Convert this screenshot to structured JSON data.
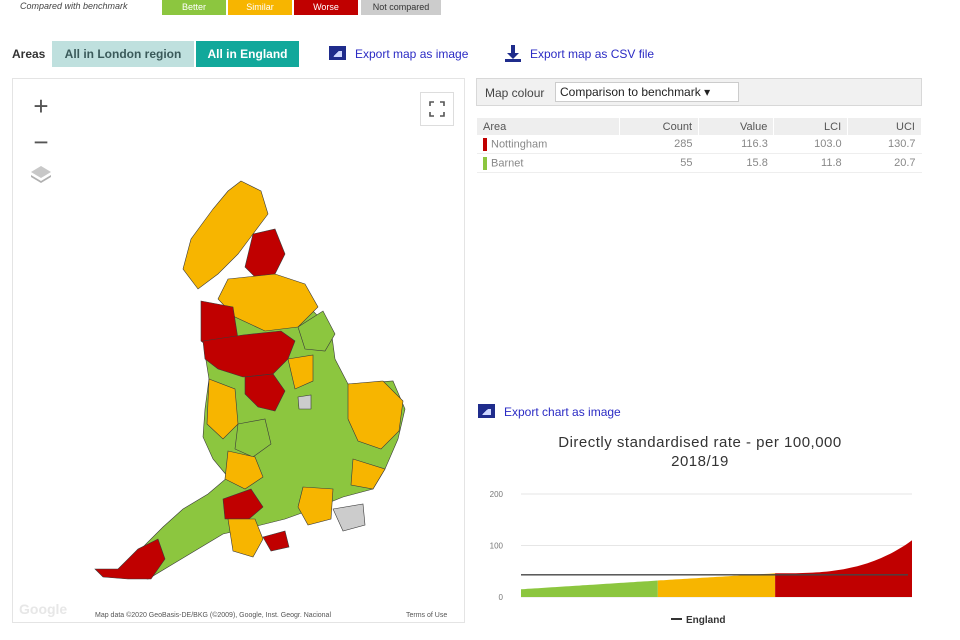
{
  "legend": {
    "label": "Compared with benchmark",
    "chips": [
      {
        "label": "Better",
        "color": "#8cc63f"
      },
      {
        "label": "Similar",
        "color": "#f7b500"
      },
      {
        "label": "Worse",
        "color": "#c00000"
      },
      {
        "label": "Not compared",
        "color": "#cccccc"
      }
    ]
  },
  "areas": {
    "label": "Areas",
    "tabs": [
      "All in London region",
      "All in England"
    ],
    "active": "All in England"
  },
  "exports": {
    "map_image": "Export map as image",
    "map_csv": "Export map as CSV file",
    "chart_image": "Export chart as image"
  },
  "map": {
    "zoom_in": "+",
    "zoom_out": "−",
    "google": "Google",
    "attribution": "Map data ©2020 GeoBasis-DE/BKG (©2009), Google, Inst. Geogr. Nacional",
    "terms": "Terms of Use"
  },
  "map_colour": {
    "label": "Map colour",
    "value": "Comparison to benchmark ▾"
  },
  "table": {
    "columns": [
      "Area",
      "Count",
      "Value",
      "LCI",
      "UCI"
    ],
    "rows": [
      {
        "area": "Nottingham",
        "count": "285",
        "value": "116.3",
        "lci": "103.0",
        "uci": "130.7",
        "color": "#c00000"
      },
      {
        "area": "Barnet",
        "count": "55",
        "value": "15.8",
        "lci": "11.8",
        "uci": "20.7",
        "color": "#8cc63f"
      }
    ]
  },
  "chart_data": {
    "type": "area",
    "title": "Directly standardised rate - per 100,000",
    "subtitle": "2018/19",
    "ylim": [
      0,
      200
    ],
    "yticks": [
      "0",
      "100",
      "200"
    ],
    "benchmark": {
      "name": "England",
      "value": 43
    },
    "grid": true,
    "legend_position": "bottom",
    "segments": [
      {
        "color": "#8cc63f",
        "from": 0.0,
        "to": 0.35,
        "y_start": 15,
        "y_end": 32
      },
      {
        "color": "#f7b500",
        "from": 0.35,
        "to": 0.65,
        "y_start": 32,
        "y_end": 46
      },
      {
        "color": "#c00000",
        "from": 0.65,
        "to": 1.0,
        "y_start": 46,
        "y_end": 110
      }
    ]
  }
}
